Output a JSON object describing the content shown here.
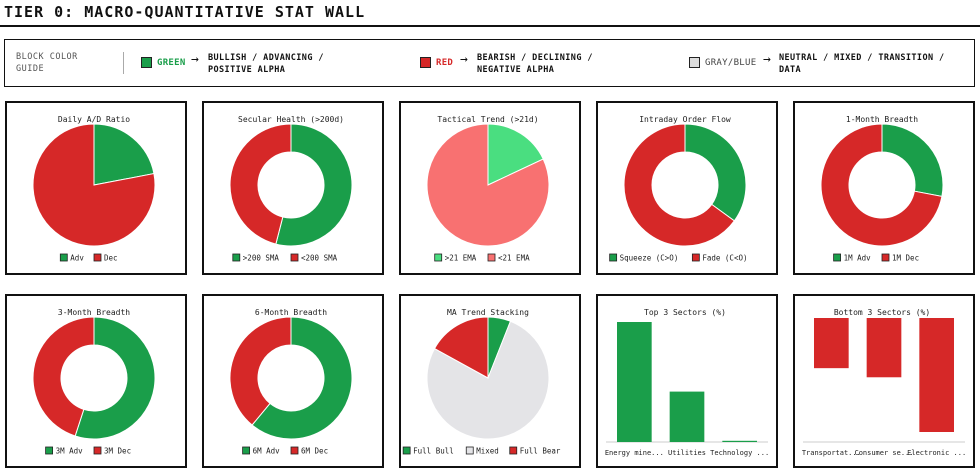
{
  "page": {
    "title": "TIER 0: MACRO-QUANTITATIVE STAT WALL"
  },
  "legend": {
    "guide": "BLOCK COLOR GUIDE",
    "items": [
      {
        "name": "GREEN",
        "color": "#1a9e4a",
        "desc": "BULLISH / ADVANCING / POSITIVE ALPHA"
      },
      {
        "name": "RED",
        "color": "#d62828",
        "desc": "BEARISH / DECLINING / NEGATIVE ALPHA"
      },
      {
        "name": "GRAY/BLUE",
        "color": "#dddddd",
        "desc": "NEUTRAL / MIXED / TRANSITION / DATA"
      }
    ]
  },
  "chart_data": [
    {
      "id": "daily-ad-ratio",
      "type": "pie",
      "title": "Daily A/D Ratio",
      "donut": false,
      "series": [
        {
          "name": "Adv",
          "value": 22,
          "color": "#1a9e4a"
        },
        {
          "name": "Dec",
          "value": 78,
          "color": "#d62828"
        }
      ]
    },
    {
      "id": "secular-health",
      "type": "pie",
      "title": "Secular Health (>200d)",
      "donut": true,
      "series": [
        {
          "name": ">200 SMA",
          "value": 54,
          "color": "#1a9e4a"
        },
        {
          "name": "<200 SMA",
          "value": 46,
          "color": "#d62828"
        }
      ]
    },
    {
      "id": "tactical-trend",
      "type": "pie",
      "title": "Tactical Trend (>21d)",
      "donut": false,
      "series": [
        {
          "name": ">21 EMA",
          "value": 18,
          "color": "#4ade80"
        },
        {
          "name": "<21 EMA",
          "value": 82,
          "color": "#f87171"
        }
      ]
    },
    {
      "id": "intraday-order-flow",
      "type": "pie",
      "title": "Intraday Order Flow",
      "donut": true,
      "series": [
        {
          "name": "Squeeze (C>O)",
          "value": 35,
          "color": "#1a9e4a"
        },
        {
          "name": "Fade (C<O)",
          "value": 65,
          "color": "#d62828"
        }
      ]
    },
    {
      "id": "one-month-breadth",
      "type": "pie",
      "title": "1-Month Breadth",
      "donut": true,
      "series": [
        {
          "name": "1M Adv",
          "value": 28,
          "color": "#1a9e4a"
        },
        {
          "name": "1M Dec",
          "value": 72,
          "color": "#d62828"
        }
      ]
    },
    {
      "id": "three-month-breadth",
      "type": "pie",
      "title": "3-Month Breadth",
      "donut": true,
      "series": [
        {
          "name": "3M Adv",
          "value": 55,
          "color": "#1a9e4a"
        },
        {
          "name": "3M Dec",
          "value": 45,
          "color": "#d62828"
        }
      ]
    },
    {
      "id": "six-month-breadth",
      "type": "pie",
      "title": "6-Month Breadth",
      "donut": true,
      "series": [
        {
          "name": "6M Adv",
          "value": 61,
          "color": "#1a9e4a"
        },
        {
          "name": "6M Dec",
          "value": 39,
          "color": "#d62828"
        }
      ]
    },
    {
      "id": "ma-trend-stacking",
      "type": "pie",
      "title": "MA Trend Stacking",
      "donut": false,
      "series": [
        {
          "name": "Full Bull",
          "value": 6,
          "color": "#1a9e4a"
        },
        {
          "name": "Mixed",
          "value": 77,
          "color": "#e4e4e7"
        },
        {
          "name": "Full Bear",
          "value": 17,
          "color": "#d62828"
        }
      ]
    },
    {
      "id": "top-3-sectors",
      "type": "bar",
      "title": "Top 3 Sectors (%)",
      "direction": "up",
      "color": "#1a9e4a",
      "categories": [
        "Energy mine...",
        "Utilities",
        "Technology ..."
      ],
      "values": [
        5.0,
        2.1,
        0.05
      ]
    },
    {
      "id": "bottom-3-sectors",
      "type": "bar",
      "title": "Bottom 3 Sectors (%)",
      "direction": "down",
      "color": "#d62828",
      "categories": [
        "Transportat...",
        "Consumer se...",
        "Electronic ..."
      ],
      "values": [
        -2.2,
        -2.6,
        -5.0
      ]
    }
  ]
}
